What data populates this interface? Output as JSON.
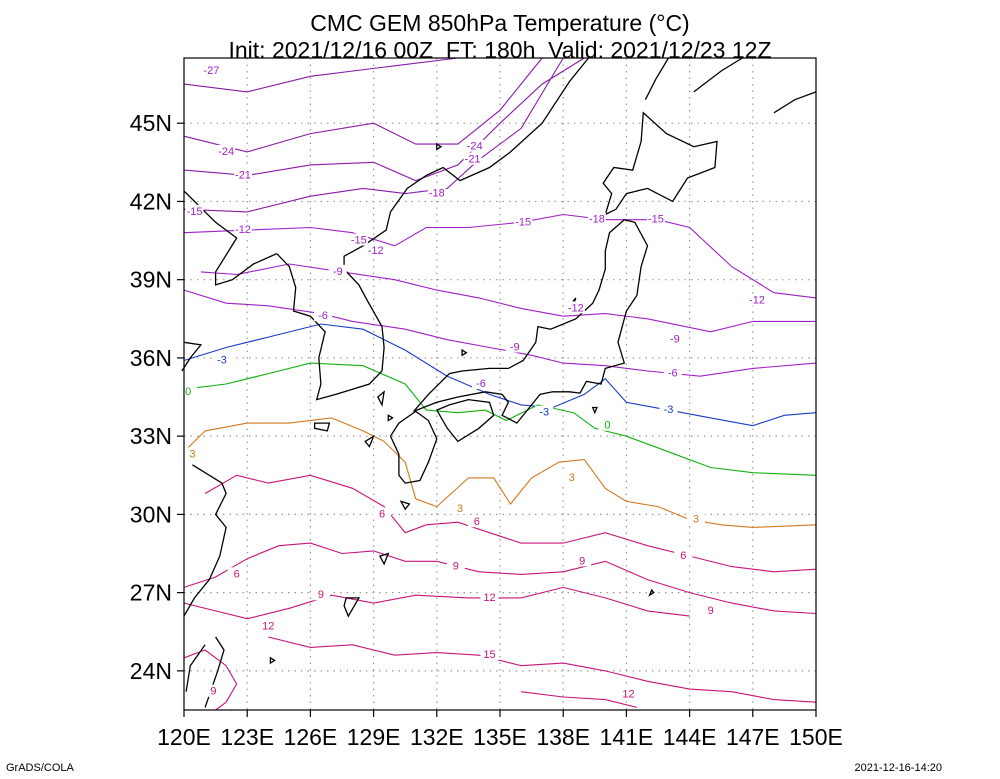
{
  "title": {
    "line1": "CMC GEM 850hPa Temperature (°C)",
    "line2": "Init: 2021/12/16 00Z  FT: 180h  Valid: 2021/12/23 12Z"
  },
  "footer": {
    "left": "GrADS/COLA",
    "right": "2021-12-16-14:20"
  },
  "map": {
    "lon_range": [
      120,
      150
    ],
    "lat_range": [
      22.5,
      47.5
    ],
    "lon_ticks": [
      "120E",
      "123E",
      "126E",
      "129E",
      "132E",
      "135E",
      "138E",
      "141E",
      "144E",
      "147E",
      "150E"
    ],
    "lat_ticks": [
      "24N",
      "27N",
      "30N",
      "33N",
      "36N",
      "39N",
      "42N",
      "45N"
    ],
    "colors": {
      "very_cold": "#8a1aa8",
      "cold": "#a020c8",
      "minus3": "#1a3cc8",
      "zero": "#10b010",
      "plus3": "#d2781e",
      "warm": "#c8147a",
      "coast": "#000000"
    },
    "contour_labels": [
      {
        "text": "-27",
        "lon": 121.3,
        "lat": 47.0,
        "color": "cold"
      },
      {
        "text": "-24",
        "lon": 122.0,
        "lat": 43.9,
        "color": "cold"
      },
      {
        "text": "-21",
        "lon": 122.8,
        "lat": 43.0,
        "color": "cold"
      },
      {
        "text": "-15",
        "lon": 120.5,
        "lat": 41.6,
        "color": "cold"
      },
      {
        "text": "-12",
        "lon": 122.8,
        "lat": 40.9,
        "color": "cold"
      },
      {
        "text": "-15",
        "lon": 128.3,
        "lat": 40.5,
        "color": "cold"
      },
      {
        "text": "-12",
        "lon": 129.1,
        "lat": 40.1,
        "color": "cold"
      },
      {
        "text": "-9",
        "lon": 127.3,
        "lat": 39.3,
        "color": "cold"
      },
      {
        "text": "-6",
        "lon": 126.6,
        "lat": 37.6,
        "color": "cold"
      },
      {
        "text": "-24",
        "lon": 133.8,
        "lat": 44.1,
        "color": "cold"
      },
      {
        "text": "-21",
        "lon": 133.7,
        "lat": 43.6,
        "color": "cold"
      },
      {
        "text": "-18",
        "lon": 132.0,
        "lat": 42.3,
        "color": "cold"
      },
      {
        "text": "-15",
        "lon": 136.1,
        "lat": 41.2,
        "color": "cold"
      },
      {
        "text": "-18",
        "lon": 139.6,
        "lat": 41.3,
        "color": "cold"
      },
      {
        "text": "-15",
        "lon": 142.4,
        "lat": 41.3,
        "color": "cold"
      },
      {
        "text": "-12",
        "lon": 147.2,
        "lat": 38.2,
        "color": "cold"
      },
      {
        "text": "-12",
        "lon": 138.6,
        "lat": 37.9,
        "color": "cold"
      },
      {
        "text": "-9",
        "lon": 135.7,
        "lat": 36.4,
        "color": "cold"
      },
      {
        "text": "-9",
        "lon": 143.3,
        "lat": 36.7,
        "color": "cold"
      },
      {
        "text": "-6",
        "lon": 134.1,
        "lat": 35.0,
        "color": "cold"
      },
      {
        "text": "-6",
        "lon": 143.2,
        "lat": 35.4,
        "color": "cold"
      },
      {
        "text": "-3",
        "lon": 121.8,
        "lat": 35.9,
        "color": "minus3"
      },
      {
        "text": "-3",
        "lon": 137.1,
        "lat": 33.9,
        "color": "minus3"
      },
      {
        "text": "-3",
        "lon": 143.0,
        "lat": 34.0,
        "color": "minus3"
      },
      {
        "text": "0",
        "lon": 120.2,
        "lat": 34.7,
        "color": "zero"
      },
      {
        "text": "0",
        "lon": 140.1,
        "lat": 33.4,
        "color": "zero"
      },
      {
        "text": "3",
        "lon": 120.4,
        "lat": 32.3,
        "color": "plus3"
      },
      {
        "text": "3",
        "lon": 138.4,
        "lat": 31.4,
        "color": "plus3"
      },
      {
        "text": "3",
        "lon": 133.1,
        "lat": 30.2,
        "color": "plus3"
      },
      {
        "text": "3",
        "lon": 144.3,
        "lat": 29.8,
        "color": "plus3"
      },
      {
        "text": "6",
        "lon": 129.4,
        "lat": 30.0,
        "color": "warm"
      },
      {
        "text": "6",
        "lon": 133.9,
        "lat": 29.7,
        "color": "warm"
      },
      {
        "text": "6",
        "lon": 143.7,
        "lat": 28.4,
        "color": "warm"
      },
      {
        "text": "6",
        "lon": 122.5,
        "lat": 27.7,
        "color": "warm"
      },
      {
        "text": "9",
        "lon": 132.9,
        "lat": 28.0,
        "color": "warm"
      },
      {
        "text": "9",
        "lon": 138.9,
        "lat": 28.2,
        "color": "warm"
      },
      {
        "text": "9",
        "lon": 126.5,
        "lat": 26.9,
        "color": "warm"
      },
      {
        "text": "9",
        "lon": 145.0,
        "lat": 26.3,
        "color": "warm"
      },
      {
        "text": "12",
        "lon": 134.5,
        "lat": 26.8,
        "color": "warm"
      },
      {
        "text": "12",
        "lon": 124.0,
        "lat": 25.7,
        "color": "warm"
      },
      {
        "text": "15",
        "lon": 134.5,
        "lat": 24.6,
        "color": "warm"
      },
      {
        "text": "12",
        "lon": 141.1,
        "lat": 23.1,
        "color": "warm"
      },
      {
        "text": "9",
        "lon": 121.4,
        "lat": 23.2,
        "color": "warm"
      }
    ]
  }
}
